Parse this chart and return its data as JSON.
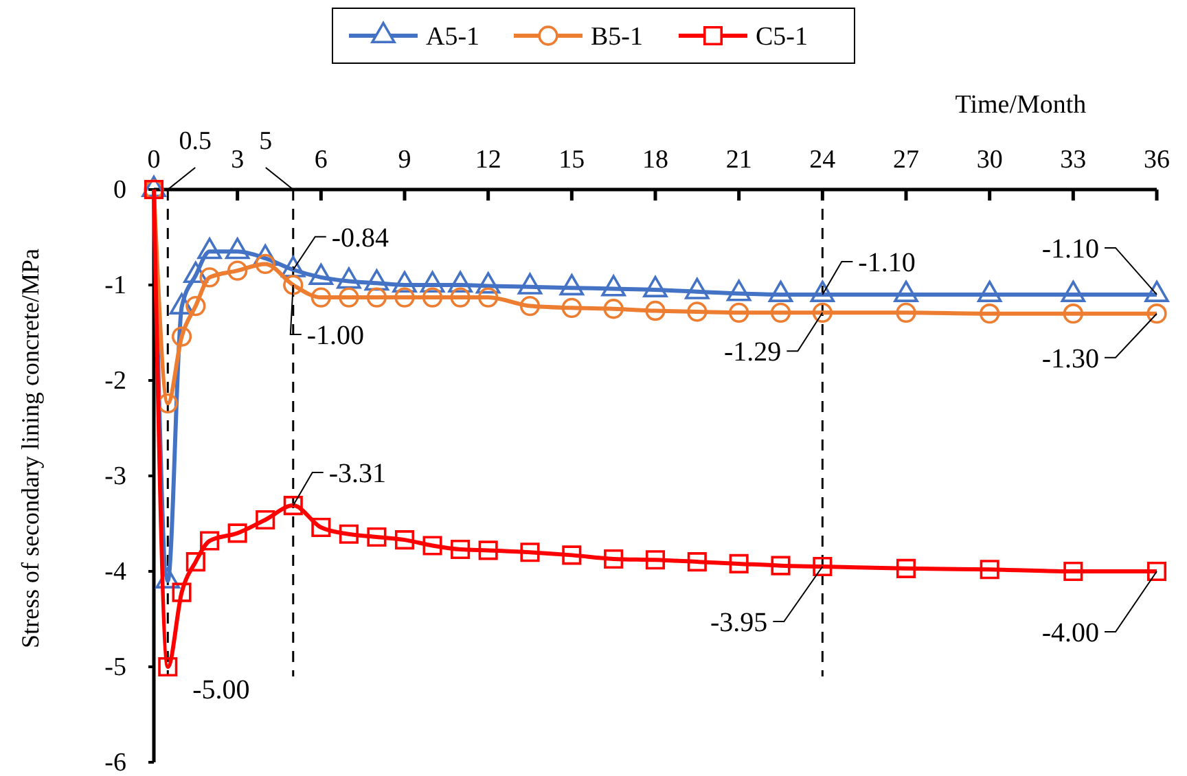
{
  "chart_data": {
    "type": "line",
    "xlabel": "Time/Month",
    "ylabel": "Stress of secondary lining concrete/MPa",
    "x": [
      0,
      0.5,
      1,
      1.5,
      2,
      3,
      4,
      5,
      6,
      7,
      8,
      9,
      10,
      11,
      12,
      13.5,
      15,
      16.5,
      18,
      19.5,
      21,
      22.5,
      24,
      27,
      30,
      33,
      36
    ],
    "series": [
      {
        "name": "A5-1",
        "color": "#4472c4",
        "marker": "triangle",
        "values": [
          0,
          -4.1,
          -1.23,
          -0.9,
          -0.65,
          -0.65,
          -0.72,
          -0.84,
          -0.92,
          -0.96,
          -0.98,
          -1.0,
          -1.0,
          -1.0,
          -1.01,
          -1.02,
          -1.03,
          -1.04,
          -1.05,
          -1.07,
          -1.09,
          -1.1,
          -1.1,
          -1.1,
          -1.1,
          -1.1,
          -1.1
        ]
      },
      {
        "name": "B5-1",
        "color": "#ed7d31",
        "marker": "circle",
        "values": [
          0,
          -2.24,
          -1.54,
          -1.22,
          -0.92,
          -0.85,
          -0.78,
          -1.0,
          -1.13,
          -1.13,
          -1.13,
          -1.13,
          -1.13,
          -1.13,
          -1.13,
          -1.22,
          -1.24,
          -1.25,
          -1.27,
          -1.28,
          -1.29,
          -1.29,
          -1.29,
          -1.29,
          -1.3,
          -1.3,
          -1.3
        ]
      },
      {
        "name": "C5-1",
        "color": "#ff0000",
        "marker": "square",
        "values": [
          0,
          -5.0,
          -4.22,
          -3.9,
          -3.68,
          -3.6,
          -3.46,
          -3.31,
          -3.54,
          -3.61,
          -3.64,
          -3.67,
          -3.73,
          -3.77,
          -3.78,
          -3.8,
          -3.83,
          -3.87,
          -3.88,
          -3.9,
          -3.92,
          -3.94,
          -3.95,
          -3.97,
          -3.98,
          -4.0,
          -4.0
        ]
      }
    ],
    "xlim": [
      0,
      36
    ],
    "xticks": [
      0,
      3,
      6,
      9,
      12,
      15,
      18,
      21,
      24,
      27,
      30,
      33,
      36
    ],
    "ylim": [
      -6,
      0
    ],
    "yticks": [
      -6,
      -5,
      -4,
      -3,
      -2,
      -1,
      0
    ],
    "ref_lines": [
      {
        "axis": "x",
        "value": 0.5,
        "label": "0.5",
        "line_style": "dashed"
      },
      {
        "axis": "x",
        "value": 5,
        "label": "5",
        "line_style": "dashed"
      },
      {
        "axis": "x",
        "value": 24,
        "line_style": "dashed"
      }
    ],
    "annotations": [
      {
        "text": "-0.84",
        "x": 5,
        "y": -0.84
      },
      {
        "text": "-1.00",
        "x": 5,
        "y": -1.0
      },
      {
        "text": "-1.10",
        "x": 24,
        "y": -1.1
      },
      {
        "text": "-1.29",
        "x": 24,
        "y": -1.29
      },
      {
        "text": "-1.10",
        "x": 36,
        "y": -1.1
      },
      {
        "text": "-1.30",
        "x": 36,
        "y": -1.3
      },
      {
        "text": "-3.31",
        "x": 5,
        "y": -3.31
      },
      {
        "text": "-5.00",
        "x": 0.5,
        "y": -5.0
      },
      {
        "text": "-3.95",
        "x": 24,
        "y": -3.95
      },
      {
        "text": "-4.00",
        "x": 36,
        "y": -4.0
      }
    ],
    "legend": "top",
    "grid": false,
    "line_style": "solid"
  }
}
